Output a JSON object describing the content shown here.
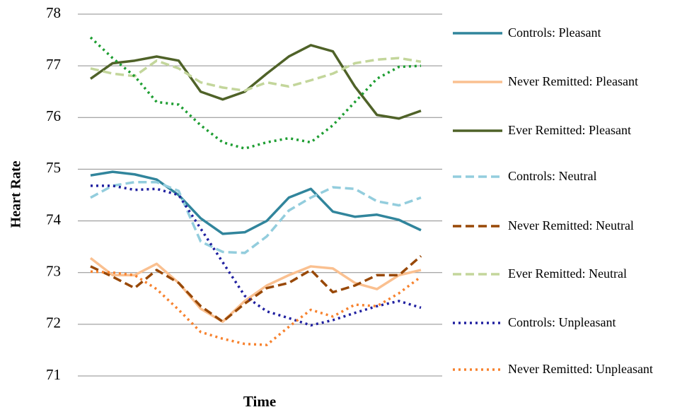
{
  "chart_data": {
    "type": "line",
    "y_label": "Heart Rate",
    "x_label": "Time",
    "categories": [
      null,
      null,
      null,
      null,
      null,
      null,
      null,
      null,
      null,
      null,
      null,
      null,
      null,
      null,
      null,
      null
    ],
    "ylim": [
      71,
      78
    ],
    "yticks": [
      71,
      72,
      73,
      74,
      75,
      76,
      77,
      78
    ],
    "grid": true,
    "series": [
      {
        "name": "Controls: Pleasant",
        "color": "#31859c",
        "style": "solid",
        "values": [
          74.88,
          74.95,
          74.9,
          74.8,
          74.5,
          74.05,
          73.75,
          73.78,
          74.0,
          74.45,
          74.62,
          74.18,
          74.08,
          74.12,
          74.02,
          73.82
        ]
      },
      {
        "name": "Never Remitted: Pleasant",
        "color": "#fac090",
        "style": "solid",
        "values": [
          73.28,
          72.95,
          72.95,
          73.17,
          72.8,
          72.3,
          72.05,
          72.45,
          72.75,
          72.95,
          73.12,
          73.08,
          72.8,
          72.68,
          72.95,
          73.05
        ]
      },
      {
        "name": "Ever Remitted: Pleasant",
        "color": "#4f6228",
        "style": "solid",
        "values": [
          76.75,
          77.05,
          77.1,
          77.18,
          77.1,
          76.5,
          76.35,
          76.5,
          76.85,
          77.18,
          77.4,
          77.28,
          76.6,
          76.05,
          75.98,
          76.13
        ]
      },
      {
        "name": "Controls: Neutral",
        "color": "#93cddd",
        "style": "dashed",
        "values": [
          74.45,
          74.68,
          74.75,
          74.75,
          74.58,
          73.6,
          73.4,
          73.38,
          73.7,
          74.2,
          74.45,
          74.65,
          74.62,
          74.38,
          74.3,
          74.45
        ]
      },
      {
        "name": "Never Remitted: Neutral",
        "color": "#984807",
        "style": "dashed",
        "values": [
          73.12,
          72.92,
          72.7,
          73.05,
          72.8,
          72.35,
          72.05,
          72.4,
          72.7,
          72.8,
          73.05,
          72.62,
          72.75,
          72.95,
          72.95,
          73.32
        ]
      },
      {
        "name": "Ever Remitted: Neutral",
        "color": "#c3d69b",
        "style": "dashed",
        "values": [
          76.95,
          76.85,
          76.8,
          77.1,
          76.95,
          76.68,
          76.58,
          76.52,
          76.68,
          76.6,
          76.72,
          76.85,
          77.05,
          77.12,
          77.15,
          77.08
        ]
      },
      {
        "name": "Controls: Unpleasant",
        "color": "#2020a0",
        "style": "dotted",
        "values": [
          74.68,
          74.68,
          74.6,
          74.62,
          74.5,
          73.85,
          73.2,
          72.55,
          72.25,
          72.12,
          71.98,
          72.08,
          72.22,
          72.35,
          72.45,
          72.32
        ]
      },
      {
        "name": "Never Remitted: Unpleasant",
        "color": "#f7822e",
        "style": "dotted",
        "values": [
          73.02,
          73.0,
          72.95,
          72.68,
          72.28,
          71.85,
          71.72,
          71.62,
          71.6,
          71.95,
          72.28,
          72.15,
          72.38,
          72.35,
          72.6,
          72.92
        ]
      },
      {
        "color": "#1e9e32",
        "style": "dotted",
        "values": [
          77.55,
          77.15,
          76.8,
          76.3,
          76.25,
          75.85,
          75.52,
          75.4,
          75.52,
          75.6,
          75.52,
          75.85,
          76.3,
          76.75,
          76.98,
          77.0
        ]
      }
    ]
  }
}
